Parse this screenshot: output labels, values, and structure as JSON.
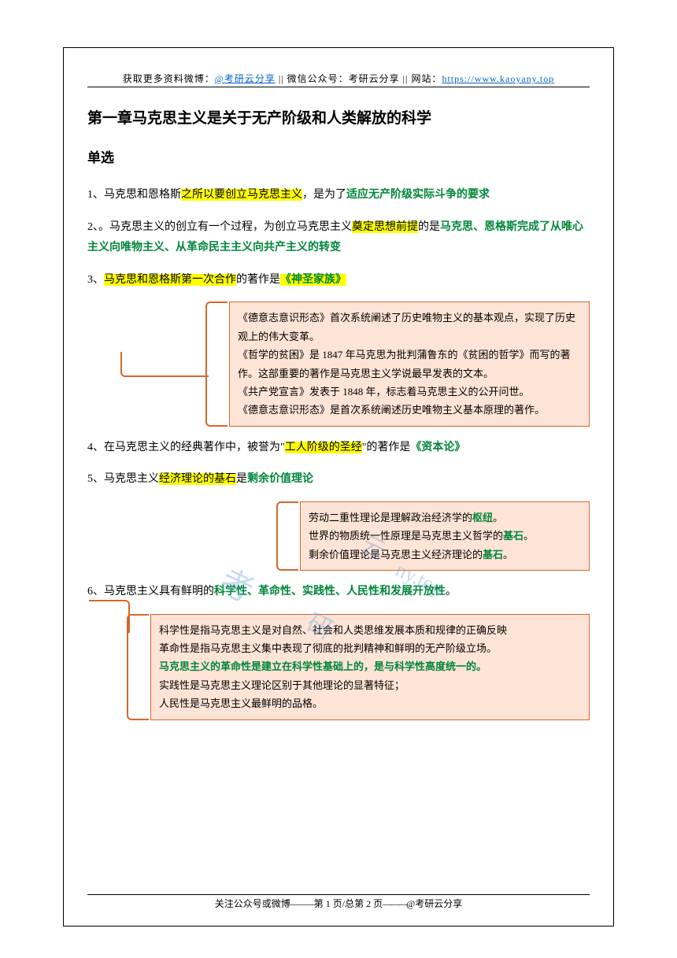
{
  "header": {
    "prefix": "获取更多资料微博：",
    "link1_text": "@考研云分享",
    "mid": " || 微信公众号：考研云分享 || 网站：",
    "link2_text": "https://www.kaoyany.top"
  },
  "title": "第一章马克思主义是关于无产阶级和人类解放的科学",
  "subtitle": "单选",
  "items": {
    "q1": {
      "num": "1、马克思和恩格斯",
      "hl1": "之所以要创立马克思主义",
      "mid": "，是为了",
      "g1": "适应无产阶级实际斗争的要求"
    },
    "q2": {
      "pre": "2、。马克思主义的创立有一个过程，为创立马克思主义",
      "hl1": "奠定思想前提",
      "mid": "的是",
      "g1": "马克思、恩格斯完成了从唯心主义向唯物主义、从革命民主主义向共产主义的转变"
    },
    "q3": {
      "num": "3、",
      "hl1": "马克思和恩格斯第一次合作",
      "mid": "的著作是",
      "g1": "《神圣家族》"
    },
    "q4": {
      "pre": "4、在马克思主义的经典著作中，被誉为\"",
      "hl1": "工人阶级的圣经",
      "mid": "\"的著作是",
      "g1": "《资本论》"
    },
    "q5": {
      "pre": "5、马克思主义",
      "hl1": "经济理论的基石",
      "mid": "是",
      "g1": "剩余价值理论"
    },
    "q6": {
      "pre": "6、马克思主义具有鲜明的",
      "g1": "科学性、革命性、实践性、人民性和发展开放性",
      "end": "。"
    }
  },
  "notes": {
    "box1": {
      "l1": "《德意志意识形态》首次系统阐述了历史唯物主义的基本观点，实现了历史观上的伟大变革。",
      "l2": "《哲学的贫困》是 1847 年马克思为批判蒲鲁东的《贫困的哲学》而写的著作。这部重要的著作是马克思主义学说最早发表的文本。",
      "l3": "《共产党宣言》发表于 1848 年，标志着马克思主义的公开问世。",
      "l4": "《德意志意识形态》是首次系统阐述历史唯物主义基本原理的著作。"
    },
    "box2": {
      "l1a": "劳动二重性理论是理解政治经济学的",
      "l1g": "枢纽",
      "l1b": "。",
      "l2a": "世界的物质统一性原理是马克思主义哲学的",
      "l2g": "基石",
      "l2b": "。",
      "l3a": "剩余价值理论是马克思主义经济理论的",
      "l3g": "基石",
      "l3b": "。"
    },
    "box3": {
      "l1": "科学性是指马克思主义是对自然、社会和人类思维发展本质和规律的正确反映",
      "l2": "革命性是指马克思主义集中表现了彻底的批判精神和鲜明的无产阶级立场。",
      "l3g": "马克思主义的革命性是建立在科学性基础上的，是与科学性高度统一的。",
      "l4": "实践性是马克思主义理论区别于其他理论的显著特征；",
      "l5": "人民性是马克思主义最鲜明的品格。"
    }
  },
  "watermark": {
    "t1": "考",
    "t2": "研",
    "t3": "云",
    "t4": "ny.top"
  },
  "footer": {
    "pre": "关注公众号或微博",
    "sep1": "———",
    "mid": "第 1 页/总第 2 页",
    "sep2": "———",
    "suf": "@考研云分享"
  },
  "colors": {
    "highlight": "#ffff00",
    "key_text": "#00863a",
    "note_bg": "#fee4d6",
    "note_border": "#d4672e",
    "link": "#0563c1",
    "watermark": "#5b9bd5"
  }
}
